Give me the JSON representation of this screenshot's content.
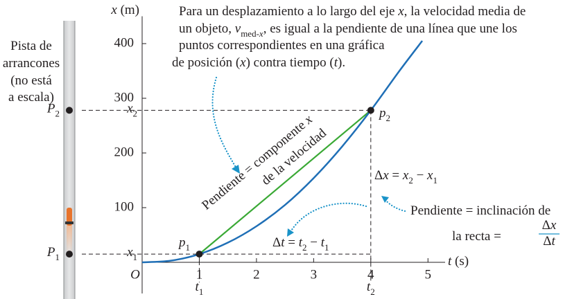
{
  "chart_data": {
    "type": "line",
    "x_label": [
      {
        "text": "t",
        "style": "italic"
      },
      {
        "text": " (s)"
      }
    ],
    "y_label": [
      {
        "text": "x",
        "style": "italic"
      },
      {
        "text": " (m)"
      }
    ],
    "origin_label": "O",
    "xlim": [
      0,
      5.3
    ],
    "ylim": [
      0,
      450
    ],
    "xticks": [
      1,
      2,
      3,
      4,
      5
    ],
    "yticks": [
      100,
      200,
      300,
      400
    ],
    "x": [
      0,
      0.5,
      1,
      1.5,
      2,
      2.5,
      3,
      3.5,
      4,
      4.5,
      4.9
    ],
    "values": [
      0,
      3,
      15,
      36,
      66,
      105,
      154,
      212,
      278,
      350,
      405
    ],
    "color": "#1f6fb6",
    "secant_color": "#3aa935",
    "points": [
      {
        "t": 1,
        "x": 15,
        "label": [
          {
            "text": "p",
            "style": "italic"
          },
          {
            "text": "1",
            "style": "sub"
          }
        ],
        "t_label": [
          {
            "text": "t",
            "style": "italic"
          },
          {
            "text": "1",
            "style": "sub"
          }
        ],
        "x_label": [
          {
            "text": "x",
            "style": "italic"
          },
          {
            "text": "1",
            "style": "sub"
          }
        ],
        "track_label": [
          {
            "text": "P",
            "style": "italic"
          },
          {
            "text": "1",
            "style": "sub"
          }
        ]
      },
      {
        "t": 4,
        "x": 278,
        "label": [
          {
            "text": "p",
            "style": "italic"
          },
          {
            "text": "2",
            "style": "sub"
          }
        ],
        "t_label": [
          {
            "text": "t",
            "style": "italic"
          },
          {
            "text": "2",
            "style": "sub"
          }
        ],
        "x_label": [
          {
            "text": "x",
            "style": "italic"
          },
          {
            "text": "2",
            "style": "sub"
          }
        ],
        "track_label": [
          {
            "text": "P",
            "style": "italic"
          },
          {
            "text": "2",
            "style": "sub"
          }
        ]
      }
    ],
    "annotations": [
      {
        "color": "#1a93c8",
        "lines": [
          [
            {
              "text": "Para un desplazamiento a lo largo del eje "
            },
            {
              "text": "x",
              "style": "italic"
            },
            {
              "text": ", la velocidad media de"
            }
          ],
          [
            {
              "text": "un objeto, "
            },
            {
              "text": "v",
              "style": "italic"
            },
            {
              "text": "med-",
              "style": "sub"
            },
            {
              "text": "x",
              "style": "sub-italic"
            },
            {
              "text": ", es igual a la pendiente de una línea que une los"
            }
          ],
          [
            {
              "text": "puntos correspondientes en una gráfica"
            }
          ],
          [
            {
              "text": "de posición ("
            },
            {
              "text": "x",
              "style": "italic"
            },
            {
              "text": ") contra tiempo ("
            },
            {
              "text": "t",
              "style": "italic"
            },
            {
              "text": ")."
            }
          ]
        ]
      },
      {
        "color": "#231f20",
        "lines": [
          [
            {
              "text": "Pista de"
            }
          ],
          [
            {
              "text": "arrancones"
            }
          ],
          [
            {
              "text": "(no está"
            }
          ],
          [
            {
              "text": "a escala)"
            }
          ]
        ]
      },
      {
        "color": "#1a93c8",
        "lines": [
          [
            {
              "text": "Pendiente = componente "
            },
            {
              "text": "x",
              "style": "italic"
            }
          ],
          [
            {
              "text": "de la velocidad"
            }
          ]
        ]
      },
      {
        "color": "#231f20",
        "lines": [
          [
            {
              "text": "Δ"
            },
            {
              "text": "x",
              "style": "italic"
            },
            {
              "text": " = "
            },
            {
              "text": "x",
              "style": "italic"
            },
            {
              "text": "2",
              "style": "sub"
            },
            {
              "text": " − "
            },
            {
              "text": "x",
              "style": "italic"
            },
            {
              "text": "1",
              "style": "sub"
            }
          ]
        ]
      },
      {
        "color": "#231f20",
        "lines": [
          [
            {
              "text": "Δ"
            },
            {
              "text": "t",
              "style": "italic"
            },
            {
              "text": " = "
            },
            {
              "text": "t",
              "style": "italic"
            },
            {
              "text": "2",
              "style": "sub"
            },
            {
              "text": " − "
            },
            {
              "text": "t",
              "style": "italic"
            },
            {
              "text": "1",
              "style": "sub"
            }
          ]
        ]
      },
      {
        "color": "#1a93c8",
        "lines": [
          [
            {
              "text": "Pendiente = inclinación de"
            }
          ],
          [
            {
              "text": "la recta = "
            }
          ]
        ],
        "fraction": {
          "num": [
            {
              "text": "Δ"
            },
            {
              "text": "x",
              "style": "italic"
            }
          ],
          "den": [
            {
              "text": "Δ"
            },
            {
              "text": "t",
              "style": "italic"
            }
          ]
        }
      }
    ]
  }
}
